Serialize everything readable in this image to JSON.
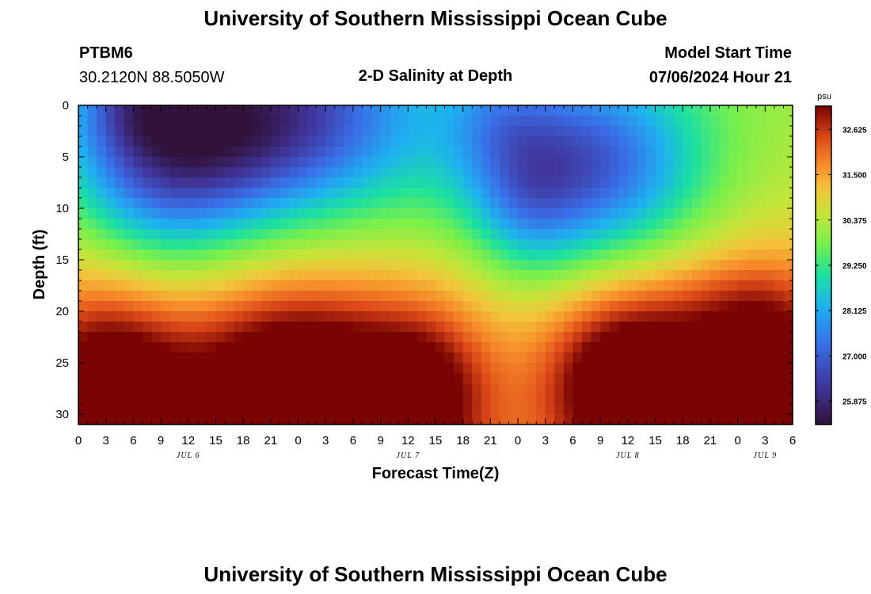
{
  "header": {
    "title": "University of Southern Mississippi Ocean Cube",
    "footer_title": "University of Southern Mississippi Ocean Cube",
    "station": "PTBM6",
    "location": "30.2120N  88.5050W",
    "plot_title": "2-D Salinity at Depth",
    "start_label": "Model Start Time",
    "start_time": "07/06/2024 Hour 21"
  },
  "chart_data": {
    "type": "heatmap",
    "title": "2-D Salinity at Depth",
    "xlabel": "Forecast Time(Z)",
    "ylabel": "Depth (ft)",
    "x_tick_labels": [
      "0",
      "3",
      "6",
      "9",
      "12",
      "15",
      "18",
      "21",
      "0",
      "3",
      "6",
      "9",
      "12",
      "15",
      "18",
      "21",
      "0",
      "3",
      "6",
      "9",
      "12",
      "15",
      "18",
      "21",
      "0",
      "3",
      "6"
    ],
    "x_range_hours": [
      0,
      78
    ],
    "date_labels": [
      {
        "text": "JUL 6",
        "hour": 12
      },
      {
        "text": "JUL 7",
        "hour": 36
      },
      {
        "text": "JUL 8",
        "hour": 60
      },
      {
        "text": "JUL 9",
        "hour": 75
      }
    ],
    "y_ticks": [
      0,
      5,
      10,
      15,
      20,
      25,
      30
    ],
    "y_range": [
      0,
      31
    ],
    "y_inverted": true,
    "colorbar": {
      "unit": "psu",
      "ticks": [
        "32.625",
        "31.500",
        "30.375",
        "29.250",
        "28.125",
        "27.000",
        "25.875"
      ],
      "range": [
        25.3,
        33.2
      ]
    },
    "anomalies": [
      {
        "t": 20,
        "d": 1.5,
        "st": 12,
        "sd": 7,
        "amp": -4.3
      },
      {
        "t": 9,
        "d": 6,
        "st": 7,
        "sd": 7,
        "amp": -2.2
      },
      {
        "t": 6,
        "d": 0,
        "st": 4,
        "sd": 3,
        "amp": -1.0
      },
      {
        "t": 55,
        "d": 6,
        "st": 9,
        "sd": 6.5,
        "amp": -3.6
      },
      {
        "t": 49,
        "d": 10,
        "st": 4,
        "sd": 5,
        "amp": -1.0
      },
      {
        "t": 46,
        "d": 1,
        "st": 4,
        "sd": 4,
        "amp": -0.8
      },
      {
        "t": 3,
        "d": 28,
        "st": 6,
        "sd": 7,
        "amp": 3.0
      },
      {
        "t": 24,
        "d": 28,
        "st": 9,
        "sd": 7,
        "amp": 3.6
      },
      {
        "t": 38,
        "d": 28,
        "st": 5,
        "sd": 6,
        "amp": 1.8
      },
      {
        "t": 60,
        "d": 27,
        "st": 6,
        "sd": 6,
        "amp": 3.2
      },
      {
        "t": 75,
        "d": 27,
        "st": 6,
        "sd": 7,
        "amp": 2.6
      },
      {
        "t": 72,
        "d": 20,
        "st": 7,
        "sd": 4,
        "amp": 0.8
      }
    ],
    "base_surface": 30.2,
    "base_gradient_per_ft": 0.04
  }
}
